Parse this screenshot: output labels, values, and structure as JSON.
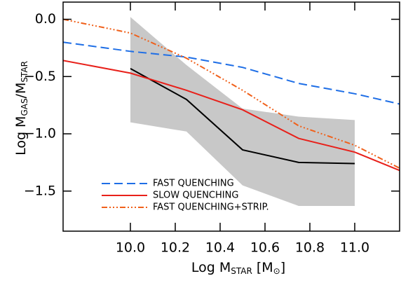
{
  "chart_data": {
    "type": "line",
    "xlabel": [
      "Log M",
      "STAR",
      " [M",
      "⊙",
      "]"
    ],
    "ylabel": [
      "Log M",
      "GAS",
      "/M",
      "STAR"
    ],
    "xlim": [
      9.7,
      11.2
    ],
    "ylim": [
      -1.85,
      0.15
    ],
    "xticks": [
      {
        "value": 10.0,
        "label": "10.0"
      },
      {
        "value": 10.2,
        "label": "10.2"
      },
      {
        "value": 10.4,
        "label": "10.4"
      },
      {
        "value": 10.6,
        "label": "10.6"
      },
      {
        "value": 10.8,
        "label": "10.8"
      },
      {
        "value": 11.0,
        "label": "11.0"
      }
    ],
    "yticks": [
      {
        "value": -1.5,
        "label": "−1.5"
      },
      {
        "value": -1.0,
        "label": "−1.0"
      },
      {
        "value": -0.5,
        "label": "−0.5"
      },
      {
        "value": 0.0,
        "label": "0.0"
      }
    ],
    "legend": "lower left",
    "band": {
      "color": "#c8c8c8",
      "x": [
        10.0,
        10.25,
        10.5,
        10.75,
        11.0
      ],
      "upper": [
        0.02,
        -0.4,
        -0.78,
        -0.85,
        -0.88
      ],
      "lower": [
        -0.9,
        -0.98,
        -1.45,
        -1.63,
        -1.63
      ]
    },
    "series": [
      {
        "color": "#000000",
        "dash": "none",
        "x": [
          10.0,
          10.25,
          10.5,
          10.75,
          11.0
        ],
        "values": [
          -0.43,
          -0.7,
          -1.14,
          -1.25,
          -1.26
        ]
      },
      {
        "name": "FAST QUENCHING",
        "color": "#1e6ee6",
        "dash": "12 6",
        "x": [
          9.7,
          10.0,
          10.25,
          10.5,
          10.75,
          11.0,
          11.2
        ],
        "values": [
          -0.2,
          -0.28,
          -0.33,
          -0.42,
          -0.56,
          -0.65,
          -0.74
        ]
      },
      {
        "name": "SLOW QUENCHING",
        "color": "#e8201a",
        "dash": "none",
        "x": [
          9.7,
          10.0,
          10.25,
          10.5,
          10.75,
          11.0,
          11.2
        ],
        "values": [
          -0.36,
          -0.47,
          -0.62,
          -0.79,
          -1.04,
          -1.16,
          -1.32
        ]
      },
      {
        "name": "FAST QUENCHING+STRIP.",
        "color": "#f0601a",
        "dash": "8 3 2 3 2 3 2 3",
        "x": [
          9.7,
          10.0,
          10.25,
          10.5,
          10.75,
          11.0,
          11.2
        ],
        "values": [
          0.0,
          -0.12,
          -0.34,
          -0.62,
          -0.93,
          -1.1,
          -1.3
        ]
      }
    ]
  }
}
